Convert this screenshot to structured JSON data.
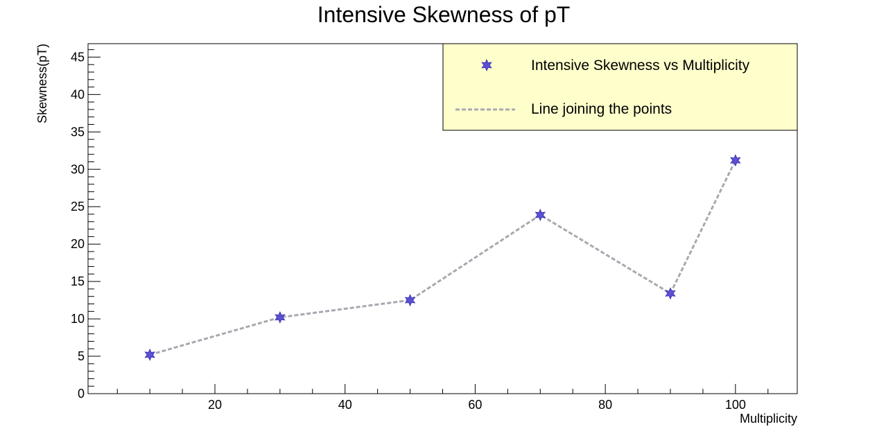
{
  "chart_data": {
    "type": "line",
    "title": "Intensive Skewness of pT",
    "xlabel": "Multiplicity",
    "ylabel": "Skewness(pT)",
    "xlim": [
      0.5,
      109.5
    ],
    "ylim": [
      0,
      46.8
    ],
    "x_ticks": [
      20,
      40,
      60,
      80,
      100
    ],
    "y_ticks": [
      0,
      5,
      10,
      15,
      20,
      25,
      30,
      35,
      40,
      45
    ],
    "grid": false,
    "legend_position": "top-right",
    "legend_background": "#ffffcc",
    "series": [
      {
        "name": "Intensive Skewness vs Multiplicity",
        "marker": "star",
        "color": "#5b4fd6",
        "x": [
          10,
          30,
          50,
          70,
          90,
          100
        ],
        "y": [
          5.2,
          10.2,
          12.5,
          23.9,
          13.4,
          31.2
        ]
      }
    ],
    "line": {
      "name": "Line joining the points",
      "style": "dashed",
      "color": "#a8a8b0"
    }
  }
}
